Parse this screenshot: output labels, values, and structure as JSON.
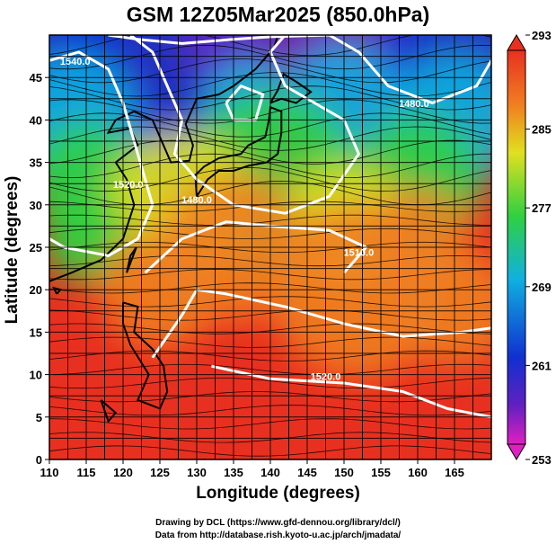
{
  "title": "GSM 12Z05Mar2025 (850.0hPa)",
  "credits": {
    "line1": "Drawing by DCL (https://www.gfd-dennou.org/library/dcl/)",
    "line2": "Data from http://database.rish.kyoto-u.ac.jp/arch/jmadata/"
  },
  "colors": {
    "magenta": "#e020c0",
    "purple": "#6020c0",
    "blue": "#1030d0",
    "cyan": "#10b0e0",
    "green": "#30d040",
    "yellow": "#e0e020",
    "orange": "#f08020",
    "red": "#e83020"
  },
  "chart_data": {
    "type": "heatmap",
    "title": "GSM 12Z05Mar2025 (850.0hPa)",
    "xlabel": "Longitude (degrees)",
    "ylabel": "Latitude (degrees)",
    "xlim": [
      110,
      170
    ],
    "ylim": [
      0,
      50
    ],
    "x_ticks": [
      110,
      115,
      120,
      125,
      130,
      135,
      140,
      145,
      150,
      155,
      160,
      165
    ],
    "y_ticks": [
      0,
      5,
      10,
      15,
      20,
      25,
      30,
      35,
      40,
      45
    ],
    "grid": true,
    "colorbar": {
      "min": 253,
      "max": 293,
      "ticks": [
        293,
        285,
        277,
        269,
        261,
        253
      ]
    },
    "contour_labels": [
      "1540.0",
      "1480.0",
      "1480.0",
      "1520.0",
      "1520.0",
      "1510.0"
    ],
    "overlays": [
      "temperature shading",
      "geopotential height contours",
      "wind streamlines",
      "coastlines"
    ]
  }
}
